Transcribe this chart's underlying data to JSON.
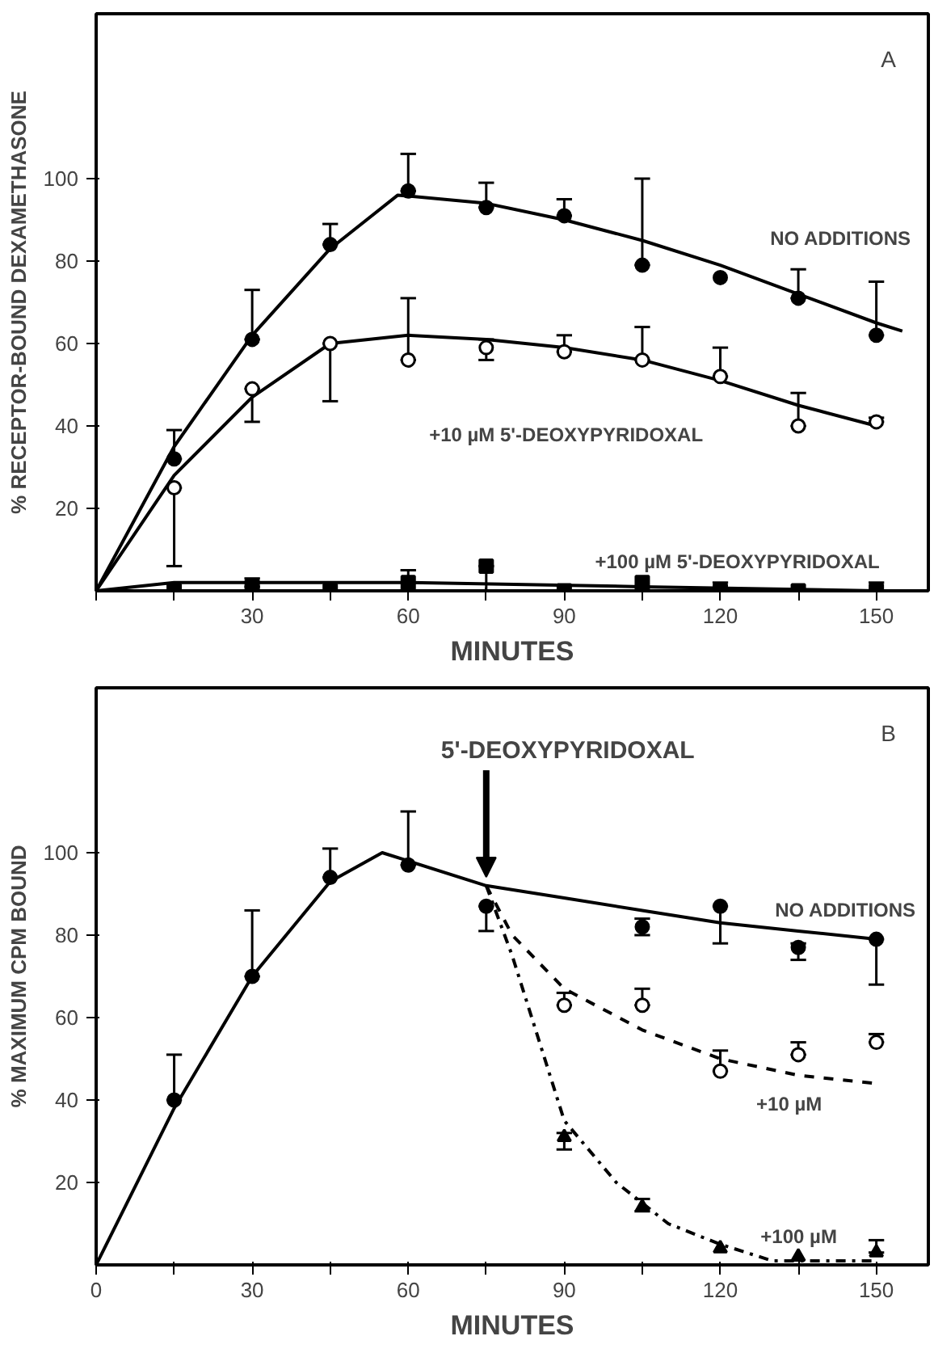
{
  "chart_data": [
    {
      "type": "scatter",
      "xlabel": "MINUTES",
      "ylabel": "% RECEPTOR-BOUND DEXAMETHASONE",
      "xlim": [
        0,
        160
      ],
      "ylim": [
        0,
        140
      ],
      "xticks": [
        {
          "value": 0,
          "label": null
        },
        {
          "value": 15,
          "label": null
        },
        30,
        {
          "value": 45,
          "label": null
        },
        60,
        {
          "value": 75,
          "label": null
        },
        90,
        {
          "value": 105,
          "label": null
        },
        120,
        {
          "value": 135,
          "label": null
        },
        150
      ],
      "yticks": [
        20,
        40,
        60,
        80,
        100
      ],
      "grid": false,
      "legend": false,
      "annotations": [
        "A"
      ],
      "series": [
        {
          "type": "line",
          "color": "#000000",
          "marker": "none",
          "line_style": "solid",
          "x": [
            0,
            15,
            30,
            45,
            58,
            75,
            90,
            105,
            120,
            135,
            150,
            155
          ],
          "values": [
            0,
            35,
            62,
            83,
            96,
            94,
            90,
            85,
            79,
            72,
            65,
            63
          ]
        },
        {
          "type": "line",
          "color": "#000000",
          "marker": "none",
          "line_style": "solid",
          "x": [
            0,
            15,
            30,
            45,
            60,
            75,
            90,
            105,
            120,
            135,
            150
          ],
          "values": [
            0,
            28,
            47,
            60,
            62,
            61,
            59,
            56,
            51,
            45,
            40
          ]
        },
        {
          "type": "line",
          "color": "#000000",
          "marker": "none",
          "line_style": "solid",
          "x": [
            0,
            15,
            60,
            105,
            150
          ],
          "values": [
            0,
            2,
            2,
            1,
            0
          ]
        },
        {
          "name": "NO ADDITIONS",
          "color": "#000000",
          "marker": "circle",
          "x": [
            15,
            30,
            45,
            60,
            75,
            90,
            105,
            120,
            135,
            150
          ],
          "values": [
            32,
            61,
            84,
            97,
            93,
            91,
            79,
            76,
            71,
            62
          ],
          "errors": [
            [
              32,
              39
            ],
            [
              61,
              73
            ],
            [
              84,
              89
            ],
            [
              97,
              106
            ],
            [
              93,
              99
            ],
            [
              91,
              95
            ],
            [
              79,
              100
            ],
            null,
            [
              71,
              78
            ],
            [
              62,
              75
            ]
          ]
        },
        {
          "name": "+10 µM 5'-DEOXYPYRIDOXAL",
          "color": "#ffffff",
          "marker": "circle",
          "x": [
            15,
            30,
            45,
            60,
            75,
            90,
            105,
            120,
            135,
            150
          ],
          "values": [
            25,
            49,
            60,
            56,
            59,
            58,
            56,
            52,
            40,
            41
          ],
          "errors": [
            [
              6,
              25
            ],
            [
              41,
              49
            ],
            [
              46,
              60
            ],
            [
              56,
              71
            ],
            [
              56,
              61
            ],
            [
              58,
              62
            ],
            [
              56,
              64
            ],
            [
              52,
              59
            ],
            [
              40,
              48
            ],
            [
              41,
              42
            ]
          ]
        },
        {
          "name": "+100 µM 5'-DEOXYPYRIDOXAL",
          "color": "#000000",
          "marker": "square",
          "x": [
            15,
            30,
            45,
            60,
            75,
            90,
            105,
            120,
            135,
            150
          ],
          "values": [
            0,
            1,
            0,
            2,
            6,
            0,
            2,
            0,
            0,
            0
          ],
          "errors": [
            null,
            [
              1,
              3
            ],
            null,
            [
              2,
              5
            ],
            [
              0,
              6
            ],
            null,
            null,
            [
              0,
              2
            ],
            null,
            [
              0,
              2
            ]
          ]
        }
      ]
    },
    {
      "type": "scatter",
      "xlabel": "MINUTES",
      "ylabel": "% MAXIMUM CPM BOUND",
      "xlim": [
        0,
        160
      ],
      "ylim": [
        0,
        140
      ],
      "xticks": [
        0,
        {
          "value": 15,
          "label": null
        },
        30,
        {
          "value": 45,
          "label": null
        },
        60,
        {
          "value": 75,
          "label": null
        },
        90,
        {
          "value": 105,
          "label": null
        },
        120,
        {
          "value": 135,
          "label": null
        },
        150
      ],
      "yticks": [
        20,
        40,
        60,
        80,
        100
      ],
      "grid": false,
      "legend": false,
      "annotations": [
        "B",
        {
          "text": "5'-DEOXYPYRIDOXAL",
          "x": 75,
          "y": 92
        }
      ],
      "series": [
        {
          "type": "line",
          "color": "#000000",
          "marker": "none",
          "line_style": "solid",
          "x": [
            0,
            15,
            30,
            45,
            55,
            60,
            75,
            90,
            105,
            120,
            135,
            150
          ],
          "values": [
            0,
            38,
            70,
            93,
            100,
            98,
            92,
            89,
            86,
            83,
            81,
            79
          ]
        },
        {
          "type": "line",
          "color": "#000000",
          "marker": "none",
          "line_style": "dashed",
          "x": [
            75,
            80,
            90,
            105,
            120,
            135,
            150
          ],
          "values": [
            92,
            80,
            67,
            57,
            50,
            46,
            44
          ]
        },
        {
          "type": "line",
          "color": "#000000",
          "marker": "none",
          "line_style": "dashdot",
          "x": [
            75,
            80,
            90,
            100,
            110,
            120,
            130,
            150
          ],
          "values": [
            92,
            75,
            35,
            20,
            10,
            5,
            1,
            1
          ]
        },
        {
          "name": "NO ADDITIONS",
          "color": "#000000",
          "marker": "circle",
          "x": [
            15,
            30,
            45,
            60,
            75,
            105,
            120,
            135,
            150
          ],
          "values": [
            40,
            70,
            94,
            97,
            87,
            82,
            87,
            77,
            79
          ],
          "errors": [
            [
              40,
              51
            ],
            [
              70,
              86
            ],
            [
              94,
              101
            ],
            [
              97,
              110
            ],
            [
              81,
              87
            ],
            [
              80,
              84
            ],
            [
              78,
              87
            ],
            [
              74,
              78
            ],
            [
              68,
              79
            ]
          ]
        },
        {
          "name": "+10 µM",
          "color": "#ffffff",
          "marker": "circle",
          "x": [
            90,
            105,
            120,
            135,
            150
          ],
          "values": [
            63,
            63,
            47,
            51,
            54
          ],
          "errors": [
            [
              63,
              66
            ],
            [
              63,
              67
            ],
            [
              47,
              52
            ],
            [
              51,
              54
            ],
            [
              54,
              56
            ]
          ]
        },
        {
          "name": "+100 µM",
          "color": "#000000",
          "marker": "triangle",
          "x": [
            90,
            105,
            120,
            135,
            150
          ],
          "values": [
            31,
            14,
            4,
            2,
            3
          ],
          "errors": [
            [
              28,
              32
            ],
            [
              13,
              16
            ],
            null,
            null,
            [
              3,
              6
            ]
          ]
        }
      ]
    }
  ]
}
